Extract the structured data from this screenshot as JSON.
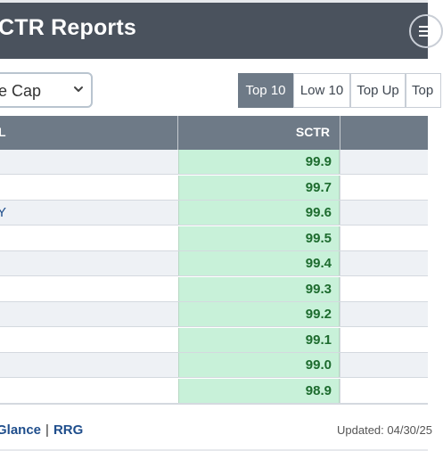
{
  "header": {
    "title": "CTR Reports"
  },
  "controls": {
    "universe_select": "e Cap",
    "tabs": [
      {
        "label": "Top 10",
        "active": true
      },
      {
        "label": "Low 10",
        "active": false
      },
      {
        "label": "Top Up",
        "active": false
      },
      {
        "label": "Top",
        "active": false
      }
    ]
  },
  "table": {
    "columns": {
      "left": "L",
      "sctr": "SCTR"
    },
    "rows": [
      {
        "name": "",
        "sctr": "99.9"
      },
      {
        "name": "",
        "sctr": "99.7"
      },
      {
        "name": "Y",
        "sctr": "99.6"
      },
      {
        "name": "",
        "sctr": "99.5"
      },
      {
        "name": "",
        "sctr": "99.4"
      },
      {
        "name": "",
        "sctr": "99.3"
      },
      {
        "name": "",
        "sctr": "99.2"
      },
      {
        "name": "",
        "sctr": "99.1"
      },
      {
        "name": "",
        "sctr": "99.0"
      },
      {
        "name": "",
        "sctr": "98.9"
      }
    ]
  },
  "footer": {
    "link_glance": "Glance",
    "separator": "|",
    "link_rrg": "RRG",
    "updated": "Updated: 04/30/25"
  },
  "colors": {
    "header_bg": "#4a525d",
    "table_head_bg": "#6e7a87",
    "sctr_bg": "#c8f1d9",
    "sctr_text": "#1d6b2e",
    "link": "#1f4e8c"
  }
}
